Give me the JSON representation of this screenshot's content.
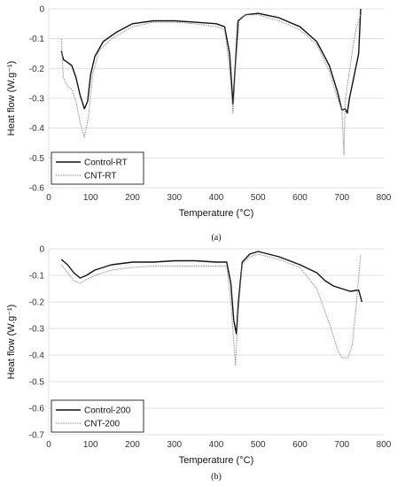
{
  "chart_data": [
    {
      "type": "line",
      "caption": "(a)",
      "xlabel": "Temperature (°C)",
      "ylabel": "Heat flow (W.g⁻¹)",
      "xlim": [
        0,
        800
      ],
      "ylim": [
        -0.6,
        0
      ],
      "xticks": [
        0,
        100,
        200,
        300,
        400,
        500,
        600,
        700,
        800
      ],
      "yticks": [
        0,
        -0.1,
        -0.2,
        -0.3,
        -0.4,
        -0.5,
        -0.6
      ],
      "ytick_labels": [
        "0",
        "-0.1",
        "-0.2",
        "-0.3",
        "-0.4",
        "-0.5",
        "-0.6"
      ],
      "grid": "horizontal",
      "legend": "bottom-left",
      "series": [
        {
          "name": "Control-RT",
          "color": "#111111",
          "style": "solid",
          "points": [
            [
              30,
              -0.14
            ],
            [
              35,
              -0.17
            ],
            [
              45,
              -0.18
            ],
            [
              55,
              -0.19
            ],
            [
              65,
              -0.23
            ],
            [
              75,
              -0.29
            ],
            [
              85,
              -0.335
            ],
            [
              93,
              -0.31
            ],
            [
              100,
              -0.22
            ],
            [
              110,
              -0.16
            ],
            [
              130,
              -0.11
            ],
            [
              160,
              -0.08
            ],
            [
              200,
              -0.05
            ],
            [
              250,
              -0.04
            ],
            [
              300,
              -0.04
            ],
            [
              350,
              -0.045
            ],
            [
              400,
              -0.05
            ],
            [
              420,
              -0.06
            ],
            [
              432,
              -0.15
            ],
            [
              440,
              -0.32
            ],
            [
              445,
              -0.2
            ],
            [
              452,
              -0.04
            ],
            [
              470,
              -0.02
            ],
            [
              500,
              -0.015
            ],
            [
              550,
              -0.03
            ],
            [
              600,
              -0.06
            ],
            [
              640,
              -0.11
            ],
            [
              670,
              -0.19
            ],
            [
              690,
              -0.28
            ],
            [
              700,
              -0.34
            ],
            [
              708,
              -0.335
            ],
            [
              713,
              -0.35
            ],
            [
              718,
              -0.3
            ],
            [
              730,
              -0.22
            ],
            [
              740,
              -0.15
            ],
            [
              745,
              0
            ]
          ]
        },
        {
          "name": "CNT-RT",
          "color": "#888888",
          "style": "dotted",
          "points": [
            [
              30,
              -0.1
            ],
            [
              35,
              -0.23
            ],
            [
              45,
              -0.26
            ],
            [
              55,
              -0.27
            ],
            [
              65,
              -0.31
            ],
            [
              75,
              -0.38
            ],
            [
              85,
              -0.43
            ],
            [
              95,
              -0.36
            ],
            [
              105,
              -0.22
            ],
            [
              120,
              -0.14
            ],
            [
              150,
              -0.1
            ],
            [
              200,
              -0.06
            ],
            [
              250,
              -0.045
            ],
            [
              300,
              -0.045
            ],
            [
              350,
              -0.05
            ],
            [
              400,
              -0.06
            ],
            [
              420,
              -0.07
            ],
            [
              432,
              -0.2
            ],
            [
              440,
              -0.35
            ],
            [
              446,
              -0.2
            ],
            [
              455,
              -0.04
            ],
            [
              470,
              -0.02
            ],
            [
              500,
              -0.02
            ],
            [
              550,
              -0.04
            ],
            [
              600,
              -0.07
            ],
            [
              640,
              -0.12
            ],
            [
              670,
              -0.21
            ],
            [
              690,
              -0.3
            ],
            [
              700,
              -0.34
            ],
            [
              705,
              -0.49
            ],
            [
              708,
              -0.31
            ],
            [
              715,
              -0.24
            ],
            [
              725,
              -0.14
            ],
            [
              735,
              -0.06
            ],
            [
              745,
              -0.02
            ]
          ]
        }
      ]
    },
    {
      "type": "line",
      "caption": "(b)",
      "xlabel": "Temperature (°C)",
      "ylabel": "Heat flow (W.g⁻¹)",
      "xlim": [
        0,
        800
      ],
      "ylim": [
        -0.7,
        0
      ],
      "xticks": [
        0,
        100,
        200,
        300,
        400,
        500,
        600,
        700,
        800
      ],
      "yticks": [
        0,
        -0.1,
        -0.2,
        -0.3,
        -0.4,
        -0.5,
        -0.6,
        -0.7
      ],
      "ytick_labels": [
        "0",
        "-0.1",
        "-0.2",
        "-0.3",
        "-0.4",
        "-0.5",
        "-0.6",
        "-0.7"
      ],
      "grid": "horizontal",
      "legend": "bottom-left",
      "series": [
        {
          "name": "Control-200",
          "color": "#111111",
          "style": "solid",
          "points": [
            [
              30,
              -0.04
            ],
            [
              45,
              -0.06
            ],
            [
              60,
              -0.09
            ],
            [
              75,
              -0.11
            ],
            [
              90,
              -0.1
            ],
            [
              110,
              -0.08
            ],
            [
              150,
              -0.06
            ],
            [
              200,
              -0.05
            ],
            [
              250,
              -0.05
            ],
            [
              300,
              -0.045
            ],
            [
              350,
              -0.045
            ],
            [
              400,
              -0.05
            ],
            [
              425,
              -0.05
            ],
            [
              435,
              -0.13
            ],
            [
              442,
              -0.27
            ],
            [
              448,
              -0.32
            ],
            [
              453,
              -0.2
            ],
            [
              462,
              -0.05
            ],
            [
              480,
              -0.02
            ],
            [
              500,
              -0.01
            ],
            [
              550,
              -0.03
            ],
            [
              600,
              -0.06
            ],
            [
              640,
              -0.09
            ],
            [
              660,
              -0.12
            ],
            [
              680,
              -0.14
            ],
            [
              700,
              -0.15
            ],
            [
              720,
              -0.16
            ],
            [
              740,
              -0.155
            ],
            [
              748,
              -0.2
            ]
          ]
        },
        {
          "name": "CNT-200",
          "color": "#888888",
          "style": "dotted",
          "points": [
            [
              30,
              -0.06
            ],
            [
              45,
              -0.09
            ],
            [
              60,
              -0.12
            ],
            [
              75,
              -0.13
            ],
            [
              90,
              -0.115
            ],
            [
              110,
              -0.1
            ],
            [
              150,
              -0.08
            ],
            [
              200,
              -0.07
            ],
            [
              250,
              -0.065
            ],
            [
              300,
              -0.065
            ],
            [
              350,
              -0.065
            ],
            [
              400,
              -0.065
            ],
            [
              425,
              -0.065
            ],
            [
              435,
              -0.2
            ],
            [
              442,
              -0.35
            ],
            [
              446,
              -0.44
            ],
            [
              452,
              -0.25
            ],
            [
              462,
              -0.06
            ],
            [
              480,
              -0.03
            ],
            [
              500,
              -0.02
            ],
            [
              550,
              -0.04
            ],
            [
              600,
              -0.07
            ],
            [
              640,
              -0.15
            ],
            [
              670,
              -0.28
            ],
            [
              690,
              -0.38
            ],
            [
              700,
              -0.41
            ],
            [
              715,
              -0.41
            ],
            [
              725,
              -0.36
            ],
            [
              735,
              -0.2
            ],
            [
              745,
              -0.02
            ]
          ]
        }
      ]
    }
  ]
}
